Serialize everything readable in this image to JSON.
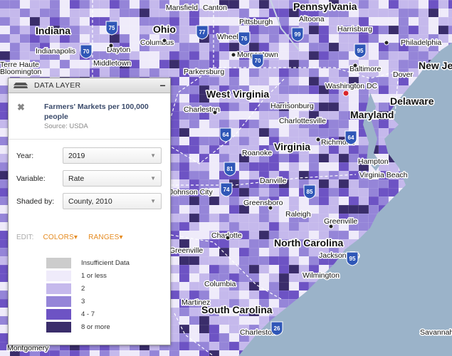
{
  "map": {
    "states": [
      "Indiana",
      "Ohio",
      "Pennsylvania",
      "New Jersey",
      "West Virginia",
      "Maryland",
      "Delaware",
      "Virginia",
      "North Carolina",
      "South Carolina"
    ],
    "cities": [
      "Mansfield",
      "Canton",
      "Altoona",
      "Indianapolis",
      "Dayton",
      "Columbus",
      "Wheeling",
      "Pittsburgh",
      "Harrisburg",
      "Philadelphia",
      "Terre Haute",
      "Middletown",
      "Morgantown",
      "Parkersburg",
      "Baltimore",
      "Dover",
      "Washington DC",
      "Charleston",
      "Harrisonburg",
      "Charlottesville",
      "Richmond",
      "Roanoke",
      "Hampton",
      "Virginia Beach",
      "Danville",
      "Greensboro",
      "Raleigh",
      "Greenville",
      "Charlotte",
      "Jacksonville",
      "Wilmington",
      "Columbia",
      "Martinez",
      "Charleston",
      "Montgomery",
      "Savannah",
      "Bloomington",
      "Johnson City",
      "Greenville"
    ],
    "highways": [
      "75",
      "77",
      "99",
      "76",
      "70",
      "70",
      "95",
      "64",
      "64",
      "81",
      "74",
      "85",
      "95",
      "26"
    ],
    "colors": {
      "water": "#9bb3c9",
      "insufficient": "#cccccc",
      "class1": "#efebfa",
      "class2": "#c5b9ec",
      "class3": "#9585d8",
      "class4": "#6d53c4",
      "class5": "#3a2d6b"
    }
  },
  "panel": {
    "header": "DATA LAYER",
    "minimize": "−",
    "close": "✖",
    "variable_title": "Farmers' Markets per 100,000 people",
    "source": "Source: USDA",
    "fields": [
      {
        "label": "Year:",
        "value": "2019"
      },
      {
        "label": "Variable:",
        "value": "Rate"
      },
      {
        "label": "Shaded by:",
        "value": "County, 2010"
      }
    ],
    "edit_label": "EDIT:",
    "colors_link": "COLORS▾",
    "ranges_link": "RANGES▾",
    "legend": [
      {
        "label": "Insufficient Data",
        "color": "#cccccc"
      },
      {
        "label": "1 or less",
        "color": "#efebfa"
      },
      {
        "label": "2",
        "color": "#c5b9ec"
      },
      {
        "label": "3",
        "color": "#9585d8"
      },
      {
        "label": "4 - 7",
        "color": "#6d53c4"
      },
      {
        "label": "8 or more",
        "color": "#3a2d6b"
      }
    ]
  }
}
